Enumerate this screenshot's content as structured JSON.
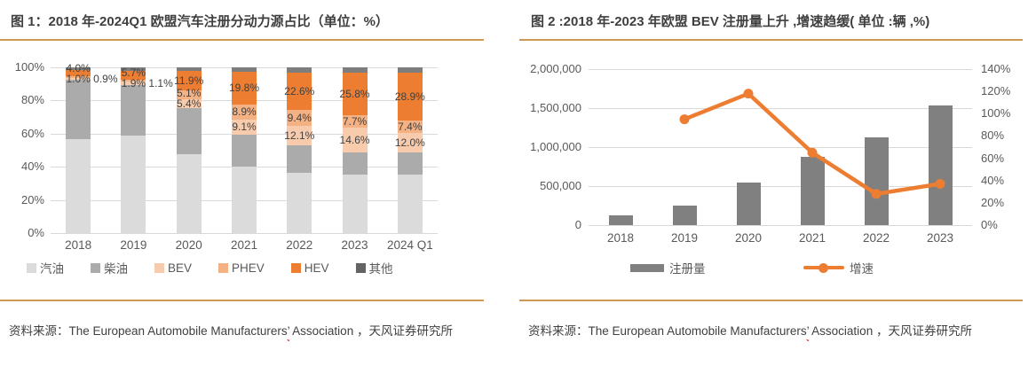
{
  "chart_data": [
    {
      "type": "bar",
      "subtype": "stacked-100pct",
      "title": "图 1：2018 年-2024Q1 欧盟汽车注册分动力源占比（单位：%）",
      "categories": [
        "2018",
        "2019",
        "2020",
        "2021",
        "2022",
        "2023",
        "2024 Q1"
      ],
      "y_ticks": [
        "100%",
        "80%",
        "60%",
        "40%",
        "20%",
        "0%"
      ],
      "ylim": [
        0,
        100
      ],
      "grid": true,
      "legend_position": "bottom",
      "series": [
        {
          "name": "汽油",
          "color": "#dbdbdb",
          "labeled": false,
          "values": [
            56.6,
            58.9,
            47.5,
            40.0,
            36.4,
            35.3,
            35.5
          ]
        },
        {
          "name": "柴油",
          "color": "#ababab",
          "labeled": false,
          "values": [
            35.9,
            30.5,
            28.0,
            19.6,
            16.4,
            13.6,
            12.9
          ]
        },
        {
          "name": "BEV",
          "color": "#f8cbad",
          "labeled": true,
          "values": [
            1.0,
            1.9,
            5.4,
            9.1,
            12.1,
            14.6,
            12.0
          ]
        },
        {
          "name": "PHEV",
          "color": "#f4b183",
          "labeled": true,
          "values": [
            0.9,
            1.1,
            5.1,
            8.9,
            9.4,
            7.7,
            7.4
          ]
        },
        {
          "name": "HEV",
          "color": "#ed7d31",
          "labeled": true,
          "values": [
            4.0,
            5.7,
            11.9,
            19.8,
            22.6,
            25.8,
            28.9
          ]
        },
        {
          "name": "其他",
          "color": "#7d7d7d",
          "labeled": false,
          "values": [
            1.6,
            1.9,
            2.1,
            2.6,
            3.1,
            3.0,
            3.3
          ]
        }
      ],
      "phev_label_outside": [
        true,
        true,
        false,
        false,
        false,
        false,
        false
      ],
      "legend_swatch_colors": {
        "其他": "#646464"
      }
    },
    {
      "type": "bar",
      "subtype": "bar+line-dual-axis",
      "title": "图 2 :2018 年-2023 年欧盟 BEV 注册量上升 ,增速趋缓( 单位 :辆 ,%)",
      "categories": [
        "2018",
        "2019",
        "2020",
        "2021",
        "2022",
        "2023"
      ],
      "left_axis": {
        "ticks": [
          "2,000,000",
          "1,500,000",
          "1,000,000",
          "500,000",
          "0"
        ],
        "max": 2000000,
        "min": 0
      },
      "right_axis": {
        "ticks": [
          "140%",
          "120%",
          "100%",
          "80%",
          "60%",
          "40%",
          "20%",
          "0%"
        ],
        "max": 140,
        "min": 0
      },
      "grid": true,
      "legend_position": "bottom",
      "bar_series": {
        "name": "注册量",
        "color": "#808080",
        "axis": "left",
        "values": [
          125000,
          245000,
          540000,
          878000,
          1123000,
          1538000
        ]
      },
      "line_series": {
        "name": "增速",
        "color": "#ed7d31",
        "axis": "right",
        "values_pct": [
          null,
          95,
          118,
          65,
          28,
          37
        ]
      }
    }
  ],
  "source": {
    "prefix": "资料来源：The European Automobile Manufacturers",
    "apostrophe": "’",
    "suffix": " Association ，天风证券研究所"
  }
}
